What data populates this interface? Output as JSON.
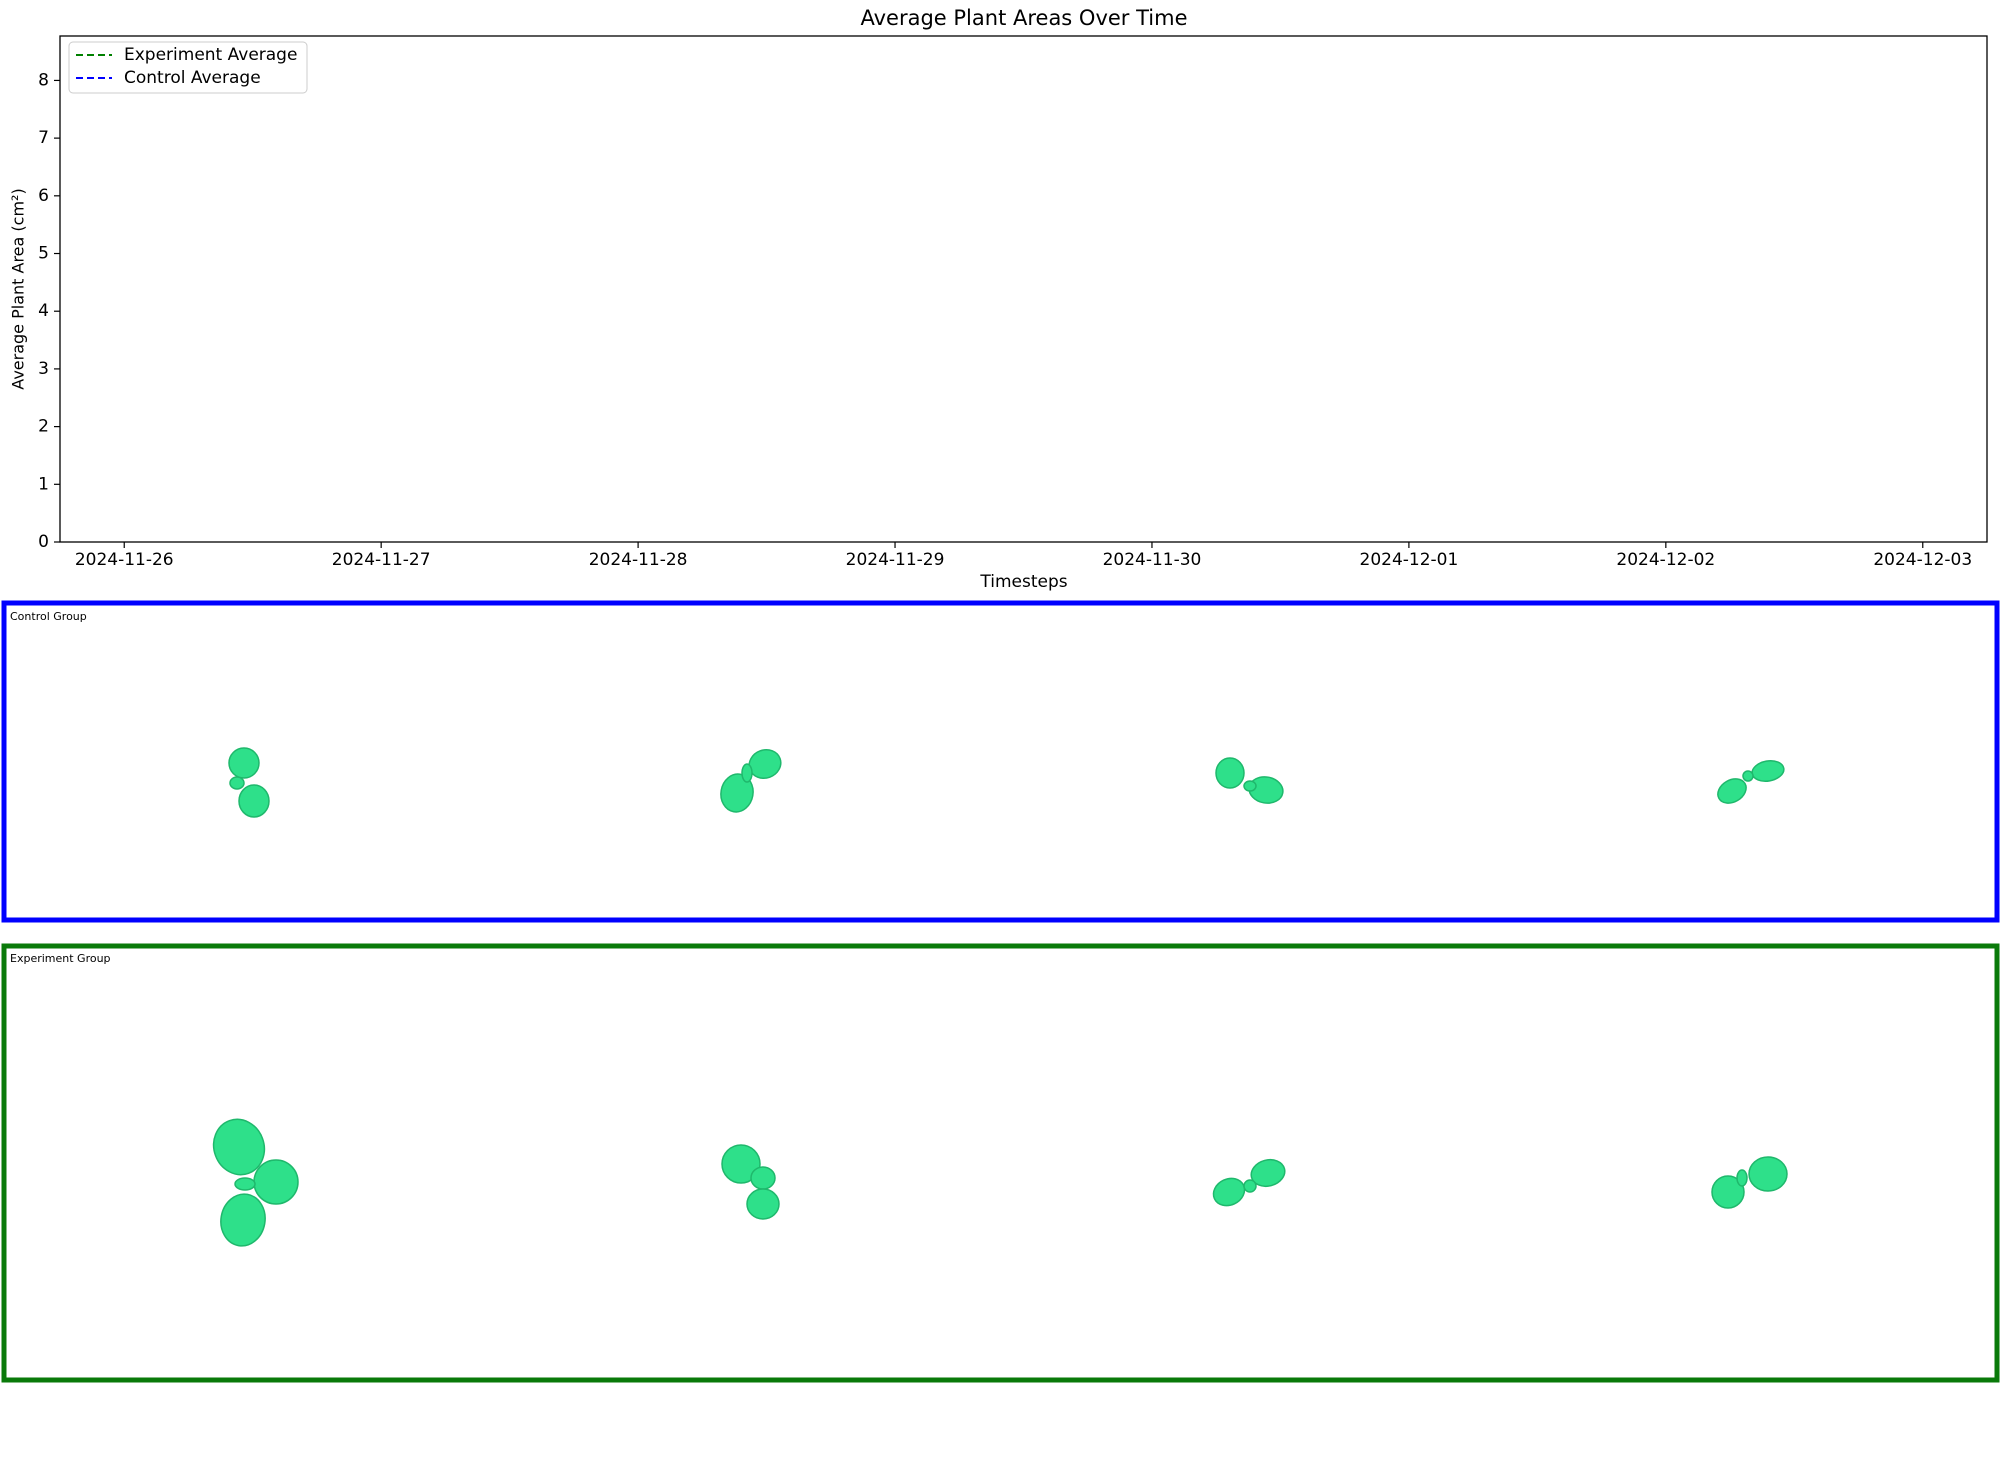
{
  "chart_data": {
    "type": "line",
    "title": "Average Plant Areas Over Time",
    "x_label": "Timesteps",
    "y_label": "Average Plant Area (cm²)",
    "x": [],
    "series": [
      {
        "name": "Experiment Average",
        "color": "#008000",
        "values": []
      },
      {
        "name": "Control Average",
        "color": "#0000ff",
        "values": []
      }
    ],
    "xlim": [
      "2024-11-25T18:00:00Z",
      "2024-12-03T06:00:00Z"
    ],
    "xticks": [
      "2024-11-26",
      "2024-11-27",
      "2024-11-28",
      "2024-11-29",
      "2024-11-30",
      "2024-12-01",
      "2024-12-02",
      "2024-12-03"
    ],
    "ylim": [
      0,
      8.77
    ],
    "yticks": [
      0,
      1,
      2,
      3,
      4,
      5,
      6,
      7,
      8
    ],
    "legend": "upper left",
    "line_style": "dashed",
    "grid": false
  },
  "panels": [
    {
      "label": "Control Group",
      "color": "#0000ff"
    },
    {
      "label": "Experiment Group",
      "color": "#0a7a0a"
    }
  ]
}
